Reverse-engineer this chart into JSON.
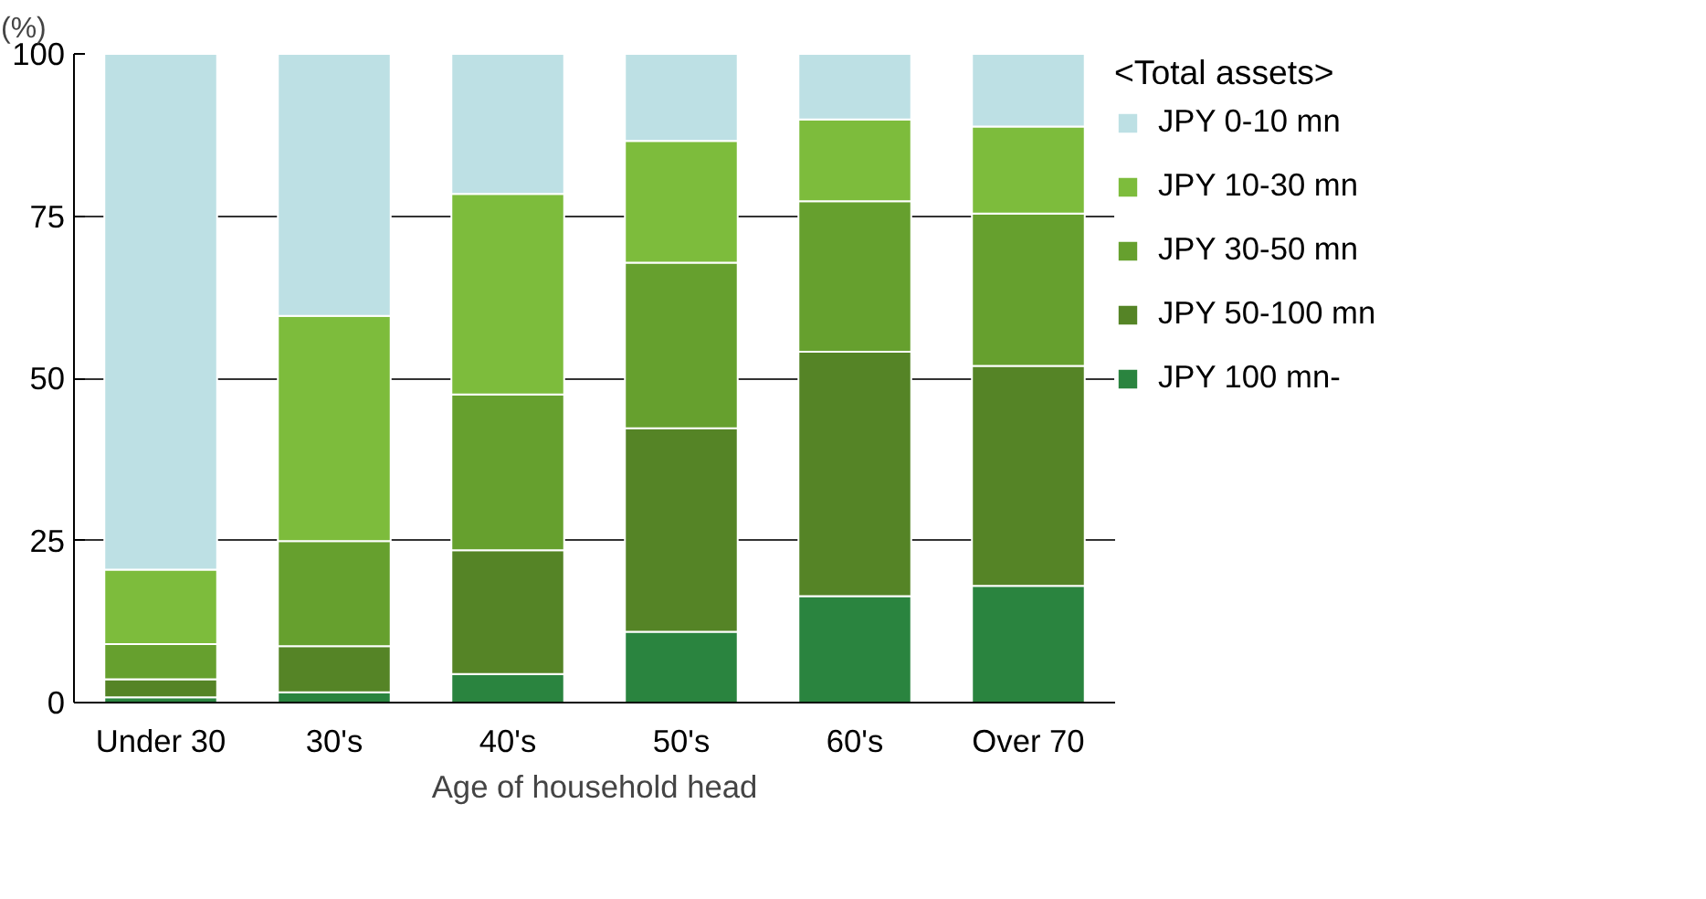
{
  "chart_data": {
    "type": "bar",
    "stacked": true,
    "xlabel": "Age of household head",
    "ylabel": "(%)",
    "legend_title": "<Total assets>",
    "categories": [
      "Under 30",
      "30's",
      "40's",
      "50's",
      "60's",
      "Over 70"
    ],
    "series": [
      {
        "name": "JPY 100 mn-",
        "color": "#2a843f",
        "values": [
          0.8,
          1.6,
          4.4,
          10.9,
          16.4,
          18.0
        ]
      },
      {
        "name": "JPY 50-100 mn",
        "color": "#558426",
        "values": [
          2.8,
          7.1,
          19.1,
          31.4,
          37.7,
          33.9
        ]
      },
      {
        "name": "JPY 30-50 mn",
        "color": "#66a02e",
        "values": [
          5.4,
          16.2,
          24.0,
          25.5,
          23.2,
          23.5
        ]
      },
      {
        "name": "JPY 10-30 mn",
        "color": "#7dbc3c",
        "values": [
          11.5,
          34.7,
          30.9,
          18.8,
          12.6,
          13.4
        ]
      },
      {
        "name": "JPY 0-10 mn",
        "color": "#bde0e4",
        "values": [
          79.8,
          40.4,
          21.6,
          13.4,
          10.1,
          11.2
        ]
      }
    ],
    "ylim": [
      0,
      100
    ],
    "yticks": [
      0,
      25,
      50,
      75,
      100
    ],
    "grid": "y",
    "legend": "right"
  }
}
